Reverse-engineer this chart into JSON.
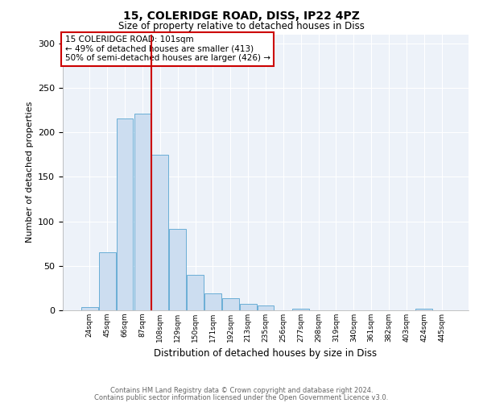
{
  "title1": "15, COLERIDGE ROAD, DISS, IP22 4PZ",
  "title2": "Size of property relative to detached houses in Diss",
  "xlabel": "Distribution of detached houses by size in Diss",
  "ylabel": "Number of detached properties",
  "footnote1": "Contains HM Land Registry data © Crown copyright and database right 2024.",
  "footnote2": "Contains public sector information licensed under the Open Government Licence v3.0.",
  "annotation_line1": "15 COLERIDGE ROAD: 101sqm",
  "annotation_line2": "← 49% of detached houses are smaller (413)",
  "annotation_line3": "50% of semi-detached houses are larger (426) →",
  "bar_labels": [
    "24sqm",
    "45sqm",
    "66sqm",
    "87sqm",
    "108sqm",
    "129sqm",
    "150sqm",
    "171sqm",
    "192sqm",
    "213sqm",
    "235sqm",
    "256sqm",
    "277sqm",
    "298sqm",
    "319sqm",
    "340sqm",
    "361sqm",
    "382sqm",
    "403sqm",
    "424sqm",
    "445sqm"
  ],
  "bar_values": [
    4,
    65,
    215,
    221,
    175,
    91,
    40,
    19,
    14,
    7,
    5,
    0,
    2,
    0,
    0,
    0,
    0,
    0,
    0,
    2,
    0
  ],
  "bar_color": "#ccddf0",
  "bar_edge_color": "#6aaed6",
  "red_line_index": 4,
  "red_line_color": "#cc0000",
  "annotation_box_color": "#cc0000",
  "background_color": "#edf2f9",
  "ylim": [
    0,
    310
  ],
  "yticks": [
    0,
    50,
    100,
    150,
    200,
    250,
    300
  ]
}
